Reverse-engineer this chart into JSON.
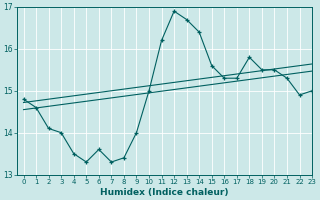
{
  "x": [
    0,
    1,
    2,
    3,
    4,
    5,
    6,
    7,
    8,
    9,
    10,
    11,
    12,
    13,
    14,
    15,
    16,
    17,
    18,
    19,
    20,
    21,
    22,
    23
  ],
  "y_main": [
    14.8,
    14.6,
    14.1,
    14.0,
    13.5,
    13.3,
    13.6,
    13.3,
    13.4,
    14.0,
    15.0,
    16.2,
    16.9,
    16.7,
    16.4,
    15.6,
    15.3,
    15.3,
    15.8,
    15.5,
    15.5,
    15.3,
    14.9,
    15.0
  ],
  "regression_line1": [
    14.55,
    14.59,
    14.63,
    14.67,
    14.71,
    14.75,
    14.79,
    14.83,
    14.87,
    14.91,
    14.95,
    14.99,
    15.03,
    15.07,
    15.11,
    15.15,
    15.19,
    15.23,
    15.27,
    15.31,
    15.35,
    15.39,
    15.43,
    15.47
  ],
  "regression_line2": [
    14.72,
    14.76,
    14.8,
    14.84,
    14.88,
    14.92,
    14.96,
    15.0,
    15.04,
    15.08,
    15.12,
    15.16,
    15.2,
    15.24,
    15.28,
    15.32,
    15.36,
    15.4,
    15.44,
    15.48,
    15.52,
    15.56,
    15.6,
    15.64
  ],
  "line_color": "#006060",
  "bg_color": "#cce8e8",
  "grid_color": "#ffffff",
  "xlabel": "Humidex (Indice chaleur)",
  "ylim": [
    13,
    17
  ],
  "xlim": [
    -0.5,
    23
  ],
  "yticks": [
    13,
    14,
    15,
    16,
    17
  ],
  "xticks": [
    0,
    1,
    2,
    3,
    4,
    5,
    6,
    7,
    8,
    9,
    10,
    11,
    12,
    13,
    14,
    15,
    16,
    17,
    18,
    19,
    20,
    21,
    22,
    23
  ],
  "tick_fontsize": 5.0,
  "xlabel_fontsize": 6.5,
  "linewidth": 0.8,
  "marker_size": 3.5
}
